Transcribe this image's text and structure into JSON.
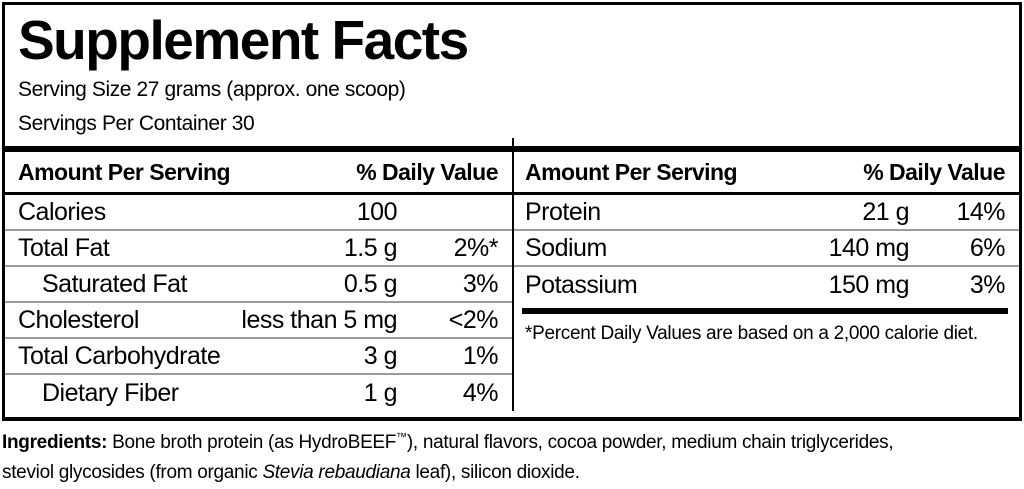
{
  "label": {
    "title": "Supplement Facts",
    "serving_size": "Serving Size 27 grams (approx. one scoop)",
    "servings_per_container": "Servings Per Container 30",
    "left_table": {
      "header_amount": "Amount Per Serving",
      "header_dv": "% Daily Value",
      "rows": [
        {
          "name": "Calories",
          "amount": "100",
          "dv": "",
          "indent": false
        },
        {
          "name": "Total Fat",
          "amount": "1.5 g",
          "dv": "2%*",
          "indent": false
        },
        {
          "name": "Saturated Fat",
          "amount": "0.5 g",
          "dv": "3%",
          "indent": true
        },
        {
          "name": "Cholesterol",
          "amount": "less than 5 mg",
          "dv": "<2%",
          "indent": false
        },
        {
          "name": "Total Carbohydrate",
          "amount": "3 g",
          "dv": "1%",
          "indent": false
        },
        {
          "name": "Dietary Fiber",
          "amount": "1 g",
          "dv": "4%",
          "indent": true
        }
      ]
    },
    "right_table": {
      "header_amount": "Amount Per Serving",
      "header_dv": "% Daily Value",
      "rows": [
        {
          "name": "Protein",
          "amount": "21 g",
          "dv": "14%",
          "indent": false
        },
        {
          "name": "Sodium",
          "amount": "140 mg",
          "dv": "6%",
          "indent": false
        },
        {
          "name": "Potassium",
          "amount": "150 mg",
          "dv": "3%",
          "indent": false
        }
      ],
      "footnote": "*Percent Daily Values are based on a 2,000 calorie diet."
    },
    "ingredients": {
      "lines": [
        {
          "segments": [
            {
              "text": "Ingredients: ",
              "bold": true
            },
            {
              "text": "Bone broth protein (as HydroBEEF"
            },
            {
              "text": "™",
              "sup": true
            },
            {
              "text": "), natural flavors, cocoa powder, medium chain triglycerides,"
            }
          ]
        },
        {
          "segments": [
            {
              "text": "steviol glycosides (from organic "
            },
            {
              "text": "Stevia rebaudiana",
              "italic": true
            },
            {
              "text": " leaf), silicon dioxide."
            }
          ]
        }
      ]
    },
    "colors": {
      "text": "#000000",
      "rule_gray": "#9b9b9b",
      "bar_black": "#000000",
      "background": "#ffffff"
    }
  }
}
